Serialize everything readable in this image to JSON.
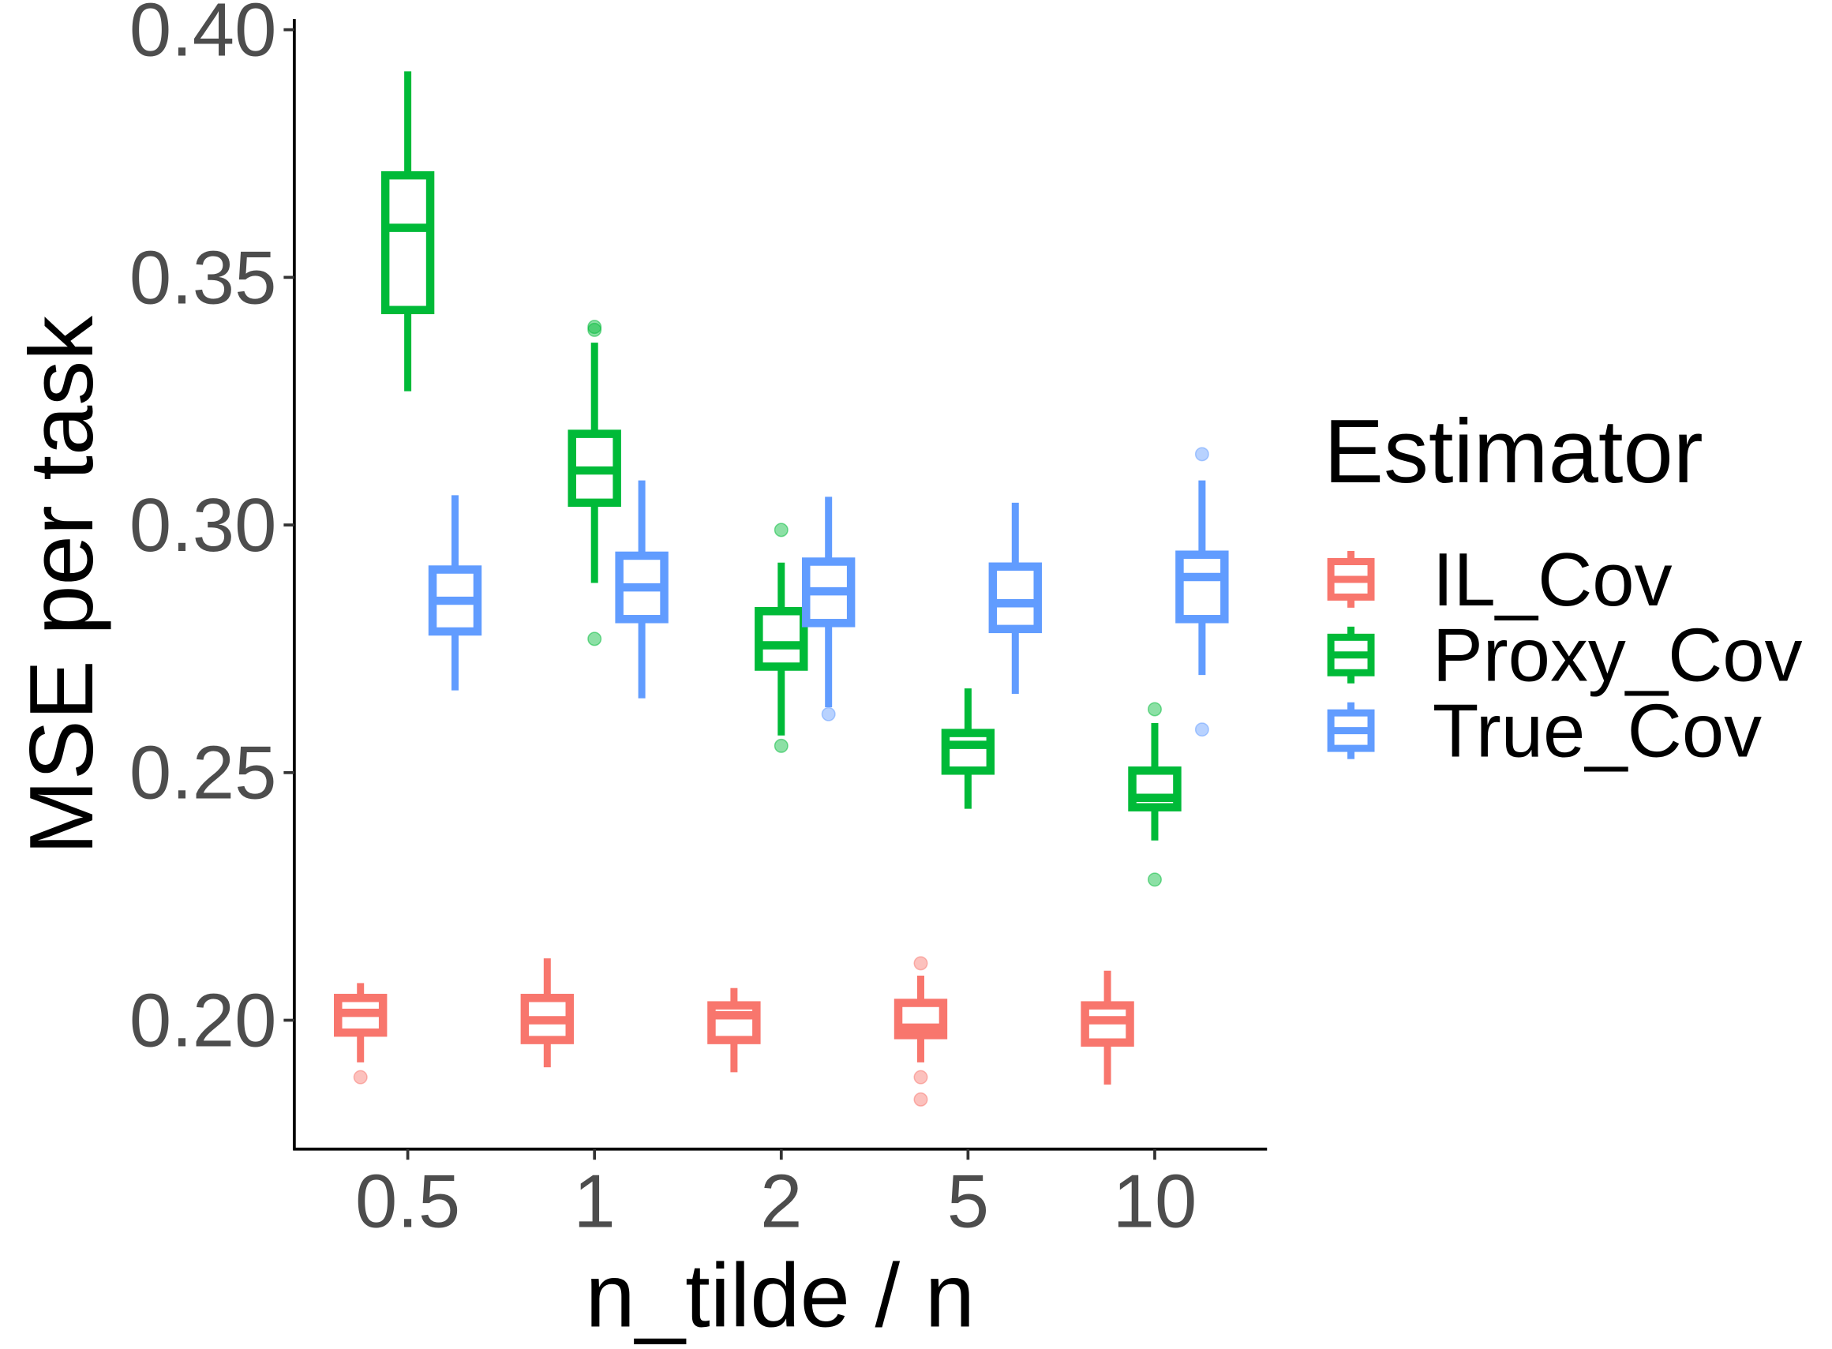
{
  "chart_data": {
    "type": "boxplot",
    "title": "",
    "xlabel": "n_tilde / n",
    "ylabel": "MSE per task",
    "categories": [
      "0.5",
      "1",
      "2",
      "5",
      "10"
    ],
    "ylim": [
      0.172,
      0.402
    ],
    "yticks": [
      0.2,
      0.25,
      0.3,
      0.35,
      0.4
    ],
    "ytick_labels": [
      "0.20",
      "0.25",
      "0.30",
      "0.35",
      "0.40"
    ],
    "grid": false,
    "legend": {
      "title": "Estimator",
      "position": "right"
    },
    "series": [
      {
        "name": "IL_Cov",
        "color": "#F8766D",
        "boxes": [
          {
            "lower": 0.1915,
            "q1": 0.1975,
            "median": 0.2015,
            "q3": 0.2045,
            "upper": 0.2075,
            "outliers": [
              0.1885
            ]
          },
          {
            "lower": 0.1905,
            "q1": 0.196,
            "median": 0.2,
            "q3": 0.2045,
            "upper": 0.2125,
            "outliers": []
          },
          {
            "lower": 0.1895,
            "q1": 0.196,
            "median": 0.201,
            "q3": 0.203,
            "upper": 0.2065,
            "outliers": []
          },
          {
            "lower": 0.1915,
            "q1": 0.197,
            "median": 0.1985,
            "q3": 0.2035,
            "upper": 0.209,
            "outliers": [
              0.2115,
              0.1885,
              0.184
            ]
          },
          {
            "lower": 0.187,
            "q1": 0.1955,
            "median": 0.2,
            "q3": 0.203,
            "upper": 0.21,
            "outliers": []
          }
        ]
      },
      {
        "name": "Proxy_Cov",
        "color": "#00BA38",
        "boxes": [
          {
            "lower": 0.327,
            "q1": 0.3434,
            "median": 0.36,
            "q3": 0.3706,
            "upper": 0.3916,
            "outliers": []
          },
          {
            "lower": 0.2883,
            "q1": 0.3045,
            "median": 0.311,
            "q3": 0.3184,
            "upper": 0.3368,
            "outliers": [
              0.34,
              0.3394,
              0.277
            ]
          },
          {
            "lower": 0.2575,
            "q1": 0.2714,
            "median": 0.2757,
            "q3": 0.2826,
            "upper": 0.2924,
            "outliers": [
              0.299,
              0.2554
            ]
          },
          {
            "lower": 0.2427,
            "q1": 0.2504,
            "median": 0.2556,
            "q3": 0.258,
            "upper": 0.267,
            "outliers": []
          },
          {
            "lower": 0.2363,
            "q1": 0.243,
            "median": 0.2449,
            "q3": 0.2504,
            "upper": 0.26,
            "outliers": [
              0.2628,
              0.2284
            ]
          }
        ]
      },
      {
        "name": "True_Cov",
        "color": "#619CFF",
        "boxes": [
          {
            "lower": 0.2666,
            "q1": 0.2785,
            "median": 0.2847,
            "q3": 0.291,
            "upper": 0.306,
            "outliers": []
          },
          {
            "lower": 0.265,
            "q1": 0.281,
            "median": 0.2874,
            "q3": 0.2938,
            "upper": 0.309,
            "outliers": []
          },
          {
            "lower": 0.2632,
            "q1": 0.2802,
            "median": 0.2866,
            "q3": 0.2926,
            "upper": 0.3057,
            "outliers": [
              0.2618
            ]
          },
          {
            "lower": 0.2659,
            "q1": 0.279,
            "median": 0.2842,
            "q3": 0.2916,
            "upper": 0.3045,
            "outliers": []
          },
          {
            "lower": 0.2697,
            "q1": 0.281,
            "median": 0.2895,
            "q3": 0.294,
            "upper": 0.309,
            "outliers": [
              0.3143,
              0.2587
            ]
          }
        ]
      }
    ]
  }
}
